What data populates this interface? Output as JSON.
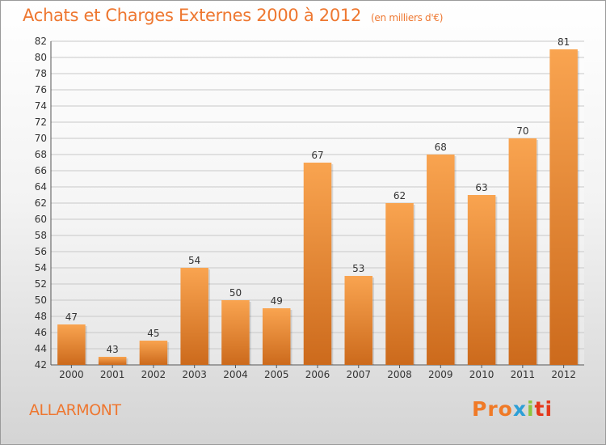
{
  "title": "Achats et Charges Externes 2000 à 2012",
  "unit_note": "(en milliers d'€)",
  "commune": "ALLARMONT",
  "logo": {
    "parts": [
      "Pro",
      "x",
      "i",
      "ti"
    ]
  },
  "colors": {
    "title": "#ee7730",
    "bar_light": "#f9a450",
    "bar_dark": "#cc6a1c",
    "grid": "#c8c8c8",
    "axis_text": "#333333"
  },
  "chart_data": {
    "type": "bar",
    "categories": [
      "2000",
      "2001",
      "2002",
      "2003",
      "2004",
      "2005",
      "2006",
      "2007",
      "2008",
      "2009",
      "2010",
      "2011",
      "2012"
    ],
    "values": [
      47,
      43,
      45,
      54,
      50,
      49,
      67,
      53,
      62,
      68,
      63,
      70,
      81
    ],
    "ylim": [
      42,
      82
    ],
    "ytick_step": 2,
    "grid": true
  }
}
